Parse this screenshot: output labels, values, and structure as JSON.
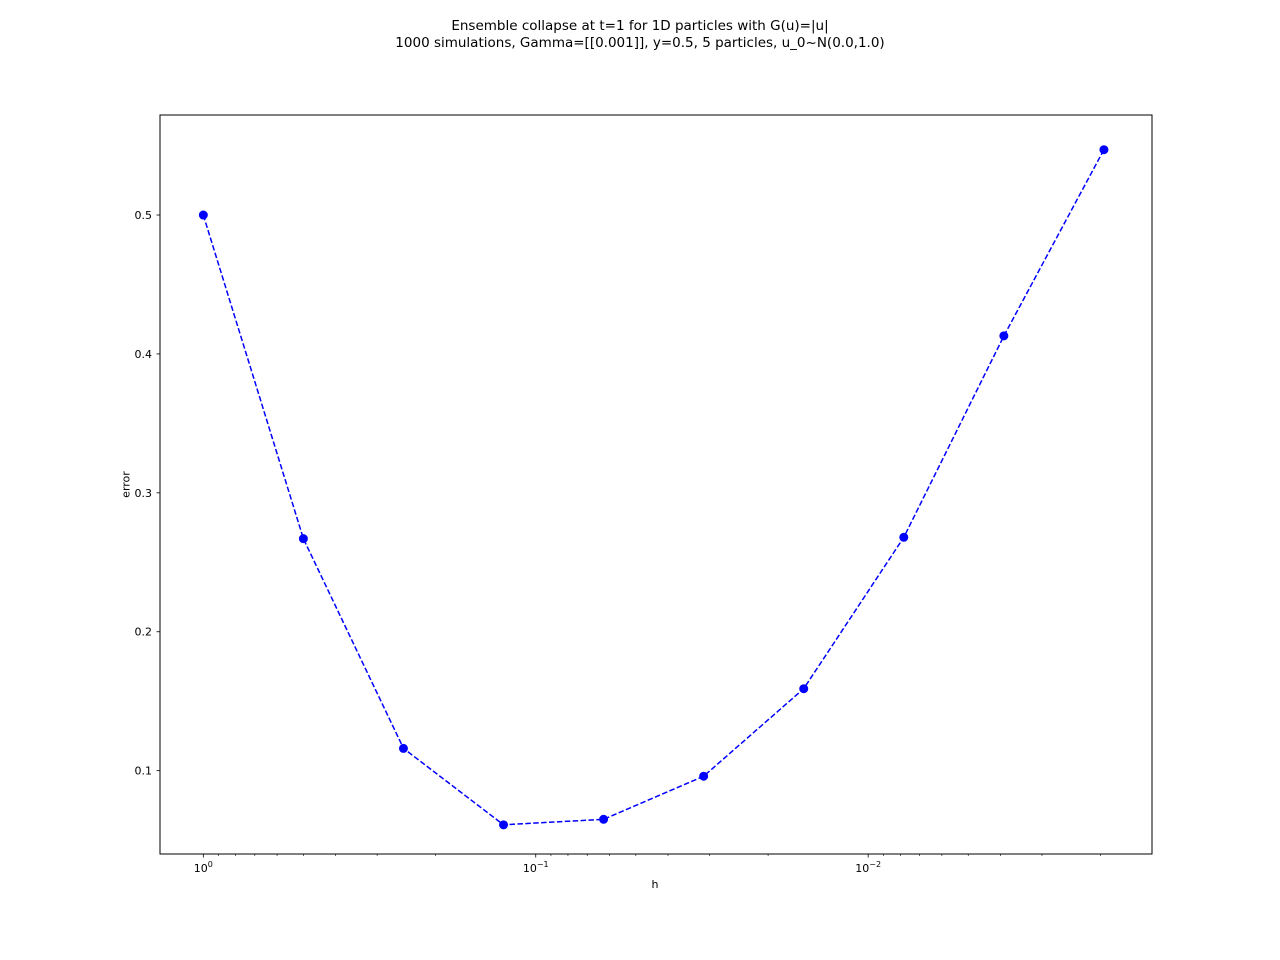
{
  "chart_data": {
    "type": "line",
    "title": "Ensemble collapse at t=1 for 1D particles with G(u)=|u|",
    "subtitle": "1000 simulations, Gamma=[[0.001]], y=0.5, 5 particles, u_0~N(0.0,1.0)",
    "xlabel": "h",
    "ylabel": "error",
    "x_scale": "log",
    "x_axis_inverted": true,
    "xlim": [
      1.35,
      0.0014
    ],
    "ylim": [
      0.04,
      0.572
    ],
    "grid": false,
    "x_ticks": [
      {
        "value": 1,
        "base": "10",
        "exp": "0"
      },
      {
        "value": 0.1,
        "base": "10",
        "exp": "−1"
      },
      {
        "value": 0.01,
        "base": "10",
        "exp": "−2"
      }
    ],
    "y_ticks": [
      0.1,
      0.2,
      0.3,
      0.4,
      0.5
    ],
    "series": [
      {
        "color": "#0000ff",
        "linestyle": "dashed",
        "marker": "circle",
        "x": [
          1,
          0.5,
          0.25,
          0.125,
          0.0625,
          0.03125,
          0.015625,
          0.0078125,
          0.00390625,
          0.001953125
        ],
        "values": [
          0.5,
          0.267,
          0.116,
          0.061,
          0.065,
          0.096,
          0.159,
          0.268,
          0.413,
          0.547
        ]
      }
    ]
  }
}
